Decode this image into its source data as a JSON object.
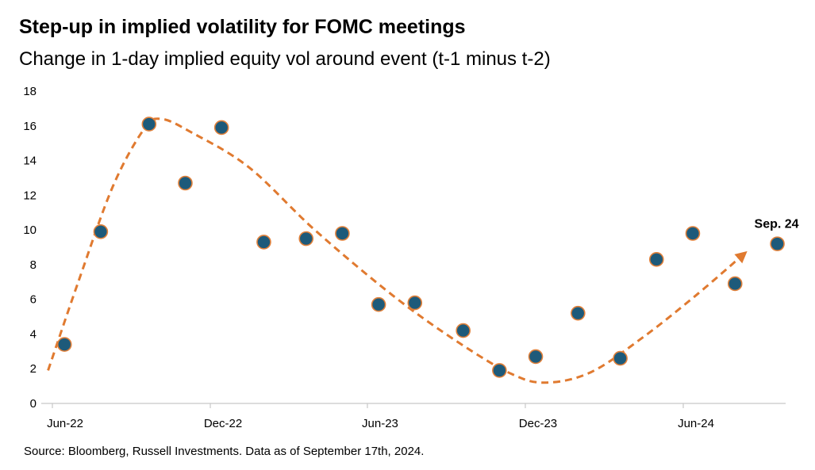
{
  "chart_data": {
    "type": "scatter",
    "title": "Step-up in implied volatility for FOMC meetings",
    "subtitle": "Change in 1-day implied equity vol around event (t-1 minus t-2)",
    "source": "Source: Bloomberg, Russell Investments. Data as of September 17th, 2024.",
    "xlabel": "",
    "ylabel": "",
    "x_start": "2022-06-01",
    "x_end": "2024-10-01",
    "x_ticks": [
      {
        "date": "2022-06-01",
        "label": "Jun-22"
      },
      {
        "date": "2022-12-01",
        "label": "Dec-22"
      },
      {
        "date": "2023-06-01",
        "label": "Jun-23"
      },
      {
        "date": "2023-12-01",
        "label": "Dec-23"
      },
      {
        "date": "2024-06-01",
        "label": "Jun-24"
      }
    ],
    "ylim": [
      0,
      18
    ],
    "y_ticks": [
      0,
      2,
      4,
      6,
      8,
      10,
      12,
      14,
      16,
      18
    ],
    "grid": false,
    "points": [
      {
        "x": "2022-06-15",
        "y": 3.4
      },
      {
        "x": "2022-07-27",
        "y": 9.9
      },
      {
        "x": "2022-09-21",
        "y": 16.1
      },
      {
        "x": "2022-11-02",
        "y": 12.7
      },
      {
        "x": "2022-12-14",
        "y": 15.9
      },
      {
        "x": "2023-02-01",
        "y": 9.3
      },
      {
        "x": "2023-03-22",
        "y": 9.5
      },
      {
        "x": "2023-05-03",
        "y": 9.8
      },
      {
        "x": "2023-06-14",
        "y": 5.7
      },
      {
        "x": "2023-07-26",
        "y": 5.8
      },
      {
        "x": "2023-09-20",
        "y": 4.2
      },
      {
        "x": "2023-11-01",
        "y": 1.9
      },
      {
        "x": "2023-12-13",
        "y": 2.7
      },
      {
        "x": "2024-01-31",
        "y": 5.2
      },
      {
        "x": "2024-03-20",
        "y": 2.6
      },
      {
        "x": "2024-05-01",
        "y": 8.3
      },
      {
        "x": "2024-06-12",
        "y": 9.8
      },
      {
        "x": "2024-07-31",
        "y": 6.9
      },
      {
        "x": "2024-09-18",
        "y": 9.2
      }
    ],
    "trend_line": [
      {
        "x": "2022-05-27",
        "y": 1.9
      },
      {
        "x": "2022-07-01",
        "y": 7.0
      },
      {
        "x": "2022-08-10",
        "y": 12.5
      },
      {
        "x": "2022-09-15",
        "y": 15.8
      },
      {
        "x": "2022-10-05",
        "y": 16.4
      },
      {
        "x": "2022-11-10",
        "y": 15.6
      },
      {
        "x": "2023-01-15",
        "y": 13.6
      },
      {
        "x": "2023-04-01",
        "y": 10.0
      },
      {
        "x": "2023-07-01",
        "y": 6.2
      },
      {
        "x": "2023-09-15",
        "y": 3.5
      },
      {
        "x": "2023-11-15",
        "y": 1.7
      },
      {
        "x": "2023-12-25",
        "y": 1.2
      },
      {
        "x": "2024-02-15",
        "y": 1.8
      },
      {
        "x": "2024-04-15",
        "y": 3.8
      },
      {
        "x": "2024-06-15",
        "y": 6.2
      },
      {
        "x": "2024-08-10",
        "y": 8.6
      }
    ],
    "annotation": {
      "text": "Sep. 24",
      "x": "2024-09-18",
      "y": 10.2
    },
    "colors": {
      "point_fill": "#1d5a7a",
      "point_stroke": "#e0803a",
      "trend_line": "#e07a30",
      "axis": "#c8c8c8"
    }
  }
}
